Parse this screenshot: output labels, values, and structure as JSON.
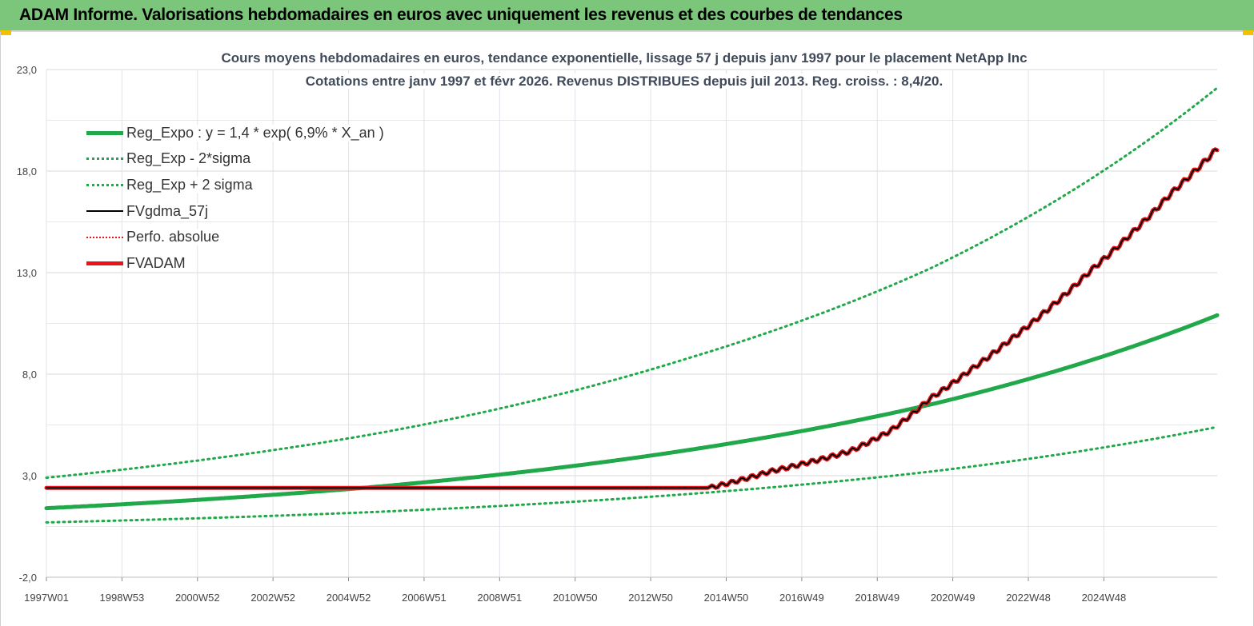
{
  "header": {
    "title": "ADAM Informe. Valorisations hebdomadaires en euros avec uniquement les revenus et des courbes de tendances"
  },
  "chart_data": {
    "type": "line",
    "title": "Cours moyens hebdomadaires en euros, tendance exponentielle, lissage 57 j depuis janv 1997 pour le placement NetApp Inc",
    "subtitle": "Cotations entre janv 1997 et févr 2026. Revenus DISTRIBUES depuis juil 2013. Reg. croiss. : 8,4/20.",
    "xlabel": "",
    "ylabel": "",
    "ylim": [
      -2,
      23
    ],
    "y_ticks": [
      "23,0",
      "18,0",
      "13,0",
      "8,0",
      "3,0",
      "-2,0"
    ],
    "x_ticks": [
      "1997W01",
      "1998W53",
      "2000W52",
      "2002W52",
      "2004W52",
      "2006W51",
      "2008W51",
      "2010W50",
      "2012W50",
      "2014W50",
      "2016W49",
      "2018W49",
      "2020W49",
      "2022W48",
      "2024W48"
    ],
    "x_range_years": [
      1997.0,
      2026.15
    ],
    "grid": true,
    "legend_position": "top-left",
    "colors": {
      "green": "#21a84a",
      "red": "#e8141a",
      "black": "#000000"
    },
    "series": [
      {
        "name": "Reg_Expo : y = 1,4 * exp( 6,9% *  X_an )",
        "style": "solid-thick",
        "color": "#21a84a",
        "x": [
          1997.0,
          2005.0,
          2013.0,
          2019.0,
          2026.15
        ],
        "y": [
          1.4,
          2.42,
          4.27,
          6.5,
          10.9
        ]
      },
      {
        "name": "Reg_Exp - 2*sigma",
        "style": "dotted",
        "color": "#21a84a",
        "x": [
          1997.0,
          2005.0,
          2013.0,
          2019.0,
          2026.15
        ],
        "y": [
          0.7,
          1.2,
          2.1,
          3.2,
          5.4
        ]
      },
      {
        "name": "Reg_Exp + 2 sigma",
        "style": "dotted",
        "color": "#21a84a",
        "x": [
          1997.0,
          2005.0,
          2013.0,
          2019.0,
          2026.15
        ],
        "y": [
          2.9,
          5.0,
          8.8,
          13.2,
          22.1
        ]
      },
      {
        "name": "FVgdma_57j",
        "style": "solid",
        "color": "#000000",
        "x": [
          1997.0,
          2013.5,
          2015.0,
          2017.0,
          2018.0,
          2019.0,
          2020.0,
          2021.0,
          2022.0,
          2023.0,
          2024.0,
          2025.0,
          2026.15
        ],
        "y": [
          2.4,
          2.4,
          3.2,
          4.2,
          5.2,
          6.8,
          8.2,
          9.7,
          11.3,
          13.1,
          14.9,
          16.9,
          19.1
        ]
      },
      {
        "name": "Perfo. absolue",
        "style": "dotted",
        "color": "#e8141a",
        "x": [
          1997.0,
          2013.5,
          2015.0,
          2017.0,
          2018.0,
          2019.0,
          2020.0,
          2021.0,
          2022.0,
          2023.0,
          2024.0,
          2025.0,
          2026.15
        ],
        "y": [
          2.4,
          2.4,
          3.2,
          4.2,
          5.2,
          6.8,
          8.2,
          9.7,
          11.3,
          13.1,
          14.9,
          16.9,
          19.1
        ]
      },
      {
        "name": "FVADAM",
        "style": "solid-thick",
        "color": "#e8141a",
        "x": [
          1997.0,
          2013.5,
          2015.0,
          2017.0,
          2018.0,
          2019.0,
          2020.0,
          2021.0,
          2022.0,
          2023.0,
          2024.0,
          2025.0,
          2026.15
        ],
        "y": [
          2.4,
          2.4,
          3.2,
          4.2,
          5.2,
          6.8,
          8.2,
          9.7,
          11.3,
          13.1,
          14.9,
          16.9,
          19.1
        ]
      }
    ]
  }
}
